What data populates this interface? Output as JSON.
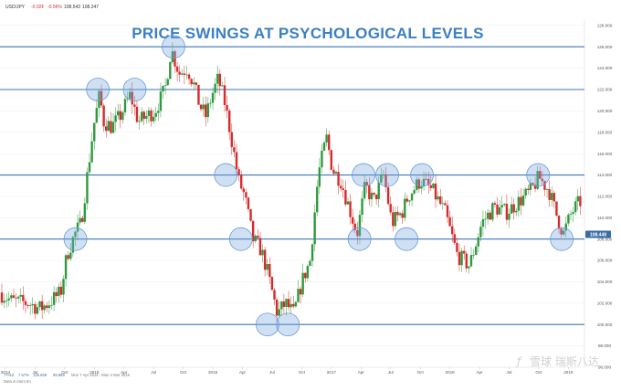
{
  "header": {
    "symbol": "USD/JPY",
    "change": "-0.02¢",
    "change_pct": "-0.56%",
    "quote": "108.543",
    "quote2": "108.247"
  },
  "footer": {
    "range_label": "7Y/4d",
    "range_pct": "7.67%",
    "high_val": "125.859",
    "low_val": "99.889",
    "date_range": "Mon 7 Apr 2014 - Mon 4 Mar 2019",
    "small_note": "Data in etoro tm"
  },
  "watermark": "雪球 瑞斯八达",
  "chart_data": {
    "type": "candlestick",
    "title": "PRICE SWINGS AT PSYCHOLOGICAL LEVELS",
    "ylim": [
      96,
      128.5
    ],
    "y_ticks": [
      "128.000",
      "126.000",
      "124.000",
      "122.000",
      "120.000",
      "118.000",
      "116.000",
      "114.000",
      "112.000",
      "110.000",
      "108.000",
      "106.000",
      "104.000",
      "102.000",
      "100.000",
      "98.000",
      "96.000"
    ],
    "x_ticks": [
      "2014",
      "Jul",
      "Oct",
      "2015",
      "Apr",
      "Jul",
      "Oct",
      "2016",
      "Apr",
      "Jul",
      "Oct",
      "2017",
      "Apr",
      "Jul",
      "Oct",
      "2018",
      "Apr",
      "Jul",
      "Oct",
      "2019"
    ],
    "psych_levels": [
      126,
      122,
      114,
      108,
      100
    ],
    "current_price": "108.448",
    "highlight_points": [
      {
        "t": 0.18,
        "v": 108.0
      },
      {
        "t": 0.235,
        "v": 122.0
      },
      {
        "t": 0.325,
        "v": 122.0
      },
      {
        "t": 0.42,
        "v": 126.0
      },
      {
        "t": 0.548,
        "v": 114.0
      },
      {
        "t": 0.585,
        "v": 108.0
      },
      {
        "t": 0.65,
        "v": 100.0
      },
      {
        "t": 0.7,
        "v": 100.0
      },
      {
        "t": 0.875,
        "v": 108.0
      },
      {
        "t": 0.885,
        "v": 114.0
      },
      {
        "t": 0.943,
        "v": 114.0
      },
      {
        "t": 0.99,
        "v": 108.0
      },
      {
        "t": 1.028,
        "v": 114.0
      },
      {
        "t": 1.312,
        "v": 114.0
      },
      {
        "t": 1.37,
        "v": 108.0
      }
    ],
    "price_path": [
      [
        0.0,
        103.0
      ],
      [
        0.03,
        102.2
      ],
      [
        0.07,
        102.0
      ],
      [
        0.1,
        101.5
      ],
      [
        0.12,
        102.0
      ],
      [
        0.15,
        103.0
      ],
      [
        0.165,
        106.5
      ],
      [
        0.185,
        108.5
      ],
      [
        0.2,
        109.5
      ],
      [
        0.215,
        114.0
      ],
      [
        0.23,
        118.5
      ],
      [
        0.245,
        121.5
      ],
      [
        0.255,
        119.0
      ],
      [
        0.275,
        118.5
      ],
      [
        0.295,
        119.5
      ],
      [
        0.32,
        121.5
      ],
      [
        0.34,
        119.0
      ],
      [
        0.36,
        119.5
      ],
      [
        0.38,
        120.0
      ],
      [
        0.405,
        122.0
      ],
      [
        0.42,
        125.8
      ],
      [
        0.44,
        123.5
      ],
      [
        0.46,
        124.0
      ],
      [
        0.475,
        122.5
      ],
      [
        0.49,
        120.5
      ],
      [
        0.505,
        119.5
      ],
      [
        0.52,
        121.5
      ],
      [
        0.535,
        123.0
      ],
      [
        0.55,
        121.0
      ],
      [
        0.565,
        118.0
      ],
      [
        0.585,
        113.5
      ],
      [
        0.6,
        112.0
      ],
      [
        0.62,
        108.0
      ],
      [
        0.64,
        107.0
      ],
      [
        0.655,
        105.0
      ],
      [
        0.68,
        101.0
      ],
      [
        0.7,
        102.0
      ],
      [
        0.72,
        101.0
      ],
      [
        0.74,
        104.0
      ],
      [
        0.76,
        106.0
      ],
      [
        0.78,
        114.0
      ],
      [
        0.8,
        117.5
      ],
      [
        0.815,
        114.5
      ],
      [
        0.835,
        113.5
      ],
      [
        0.855,
        111.0
      ],
      [
        0.875,
        108.5
      ],
      [
        0.895,
        113.0
      ],
      [
        0.915,
        111.5
      ],
      [
        0.94,
        114.0
      ],
      [
        0.96,
        109.5
      ],
      [
        0.985,
        110.5
      ],
      [
        1.0,
        112.0
      ],
      [
        1.03,
        113.5
      ],
      [
        1.06,
        112.5
      ],
      [
        1.09,
        110.5
      ],
      [
        1.12,
        106.5
      ],
      [
        1.15,
        105.5
      ],
      [
        1.18,
        109.5
      ],
      [
        1.21,
        111.0
      ],
      [
        1.24,
        110.5
      ],
      [
        1.27,
        111.5
      ],
      [
        1.3,
        112.5
      ],
      [
        1.32,
        113.8
      ],
      [
        1.345,
        112.5
      ],
      [
        1.365,
        110.0
      ],
      [
        1.38,
        108.5
      ],
      [
        1.4,
        110.5
      ],
      [
        1.42,
        111.5
      ]
    ]
  }
}
